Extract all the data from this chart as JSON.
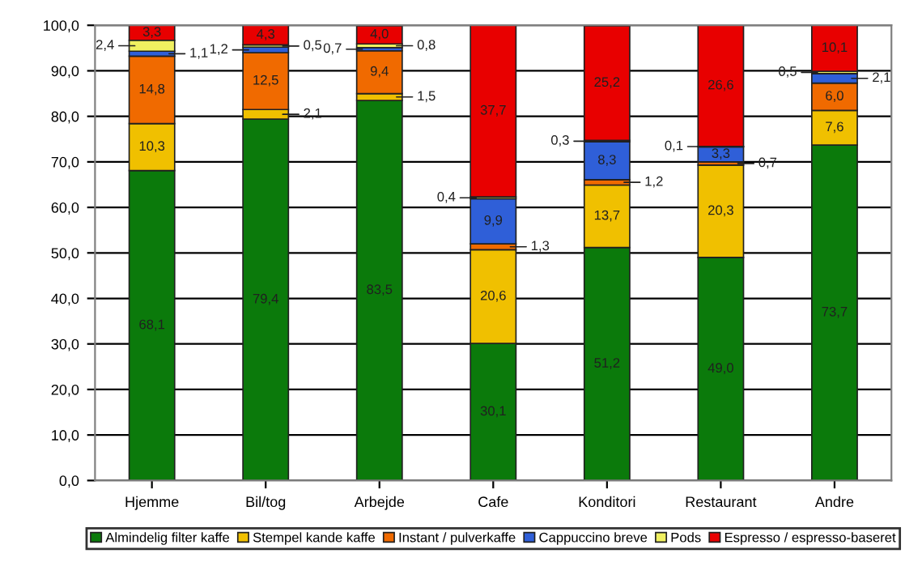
{
  "chart_data": {
    "type": "bar",
    "stacked": true,
    "categories": [
      "Hjemme",
      "Bil/tog",
      "Arbejde",
      "Cafe",
      "Konditori",
      "Restaurant",
      "Andre"
    ],
    "series": [
      {
        "name": "Almindelig filter kaffe",
        "color": "#0b7a0b",
        "values": [
          68.1,
          79.4,
          83.5,
          30.1,
          51.2,
          49.0,
          73.7
        ],
        "value_labels": [
          "68,1",
          "79,4",
          "83,5",
          "30,1",
          "51,2",
          "49,0",
          "73,7"
        ]
      },
      {
        "name": "Stempel kande kaffe",
        "color": "#f0c000",
        "values": [
          10.3,
          2.1,
          1.5,
          20.6,
          13.7,
          20.3,
          7.6
        ],
        "value_labels": [
          "10,3",
          "2,1",
          "1,5",
          "20,6",
          "13,7",
          "20,3",
          "7,6"
        ]
      },
      {
        "name": "Instant / pulverkaffe",
        "color": "#f06a00",
        "values": [
          14.8,
          12.5,
          9.4,
          1.3,
          1.2,
          0.7,
          6.0
        ],
        "value_labels": [
          "14,8",
          "12,5",
          "9,4",
          "1,3",
          "1,2",
          "0,7",
          "6,0"
        ]
      },
      {
        "name": "Cappuccino breve",
        "color": "#2f5fd8",
        "values": [
          1.1,
          1.2,
          0.7,
          9.9,
          8.3,
          3.3,
          2.1
        ],
        "value_labels": [
          "1,1",
          "1,2",
          "0,7",
          "9,9",
          "8,3",
          "3,3",
          "2,1"
        ]
      },
      {
        "name": "Pods",
        "color": "#f0f060",
        "values": [
          2.4,
          0.5,
          0.8,
          0.4,
          0.3,
          0.1,
          0.5
        ],
        "value_labels": [
          "2,4",
          "0,5",
          "0,8",
          "0,4",
          "0,3",
          "0,1",
          "0,5"
        ]
      },
      {
        "name": "Espresso / espresso-baseret",
        "color": "#e80000",
        "values": [
          3.3,
          4.3,
          4.0,
          37.7,
          25.2,
          26.6,
          10.1
        ],
        "value_labels": [
          "3,3",
          "4,3",
          "4,0",
          "37,7",
          "25,2",
          "26,6",
          "10,1"
        ]
      }
    ],
    "ylim": [
      0,
      100
    ],
    "yticks": [
      {
        "value": 0,
        "label": "0,0"
      },
      {
        "value": 10,
        "label": "10,0"
      },
      {
        "value": 20,
        "label": "20,0"
      },
      {
        "value": 30,
        "label": "30,0"
      },
      {
        "value": 40,
        "label": "40,0"
      },
      {
        "value": 50,
        "label": "50,0"
      },
      {
        "value": 60,
        "label": "60,0"
      },
      {
        "value": 70,
        "label": "70,0"
      },
      {
        "value": 80,
        "label": "80,0"
      },
      {
        "value": 90,
        "label": "90,0"
      },
      {
        "value": 100,
        "label": "100,0"
      }
    ],
    "grid": "y",
    "legend": "bottom"
  }
}
